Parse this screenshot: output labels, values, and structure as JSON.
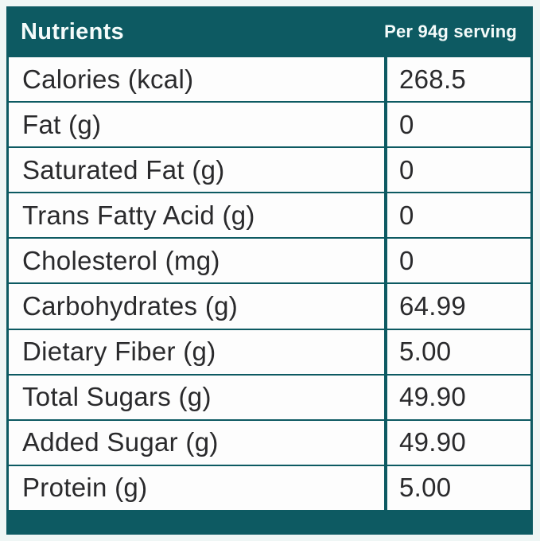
{
  "table": {
    "title": "Nutrients",
    "serving_label": "Per 94g serving",
    "rows": [
      {
        "label": "Calories (kcal)",
        "value": "268.5"
      },
      {
        "label": "Fat (g)",
        "value": "0"
      },
      {
        "label": "Saturated Fat (g)",
        "value": "0"
      },
      {
        "label": "Trans Fatty Acid (g)",
        "value": "0"
      },
      {
        "label": "Cholesterol (mg)",
        "value": "0"
      },
      {
        "label": "Carbohydrates (g)",
        "value": "64.99"
      },
      {
        "label": "Dietary Fiber (g)",
        "value": "5.00"
      },
      {
        "label": "Total Sugars (g)",
        "value": "49.90"
      },
      {
        "label": "Added Sugar (g)",
        "value": "49.90"
      },
      {
        "label": "Protein (g)",
        "value": "5.00"
      }
    ],
    "colors": {
      "teal": "#0d5a62",
      "cell_background": "#fdfdfd",
      "page_background": "#eff6f5",
      "text": "#2a2a2c",
      "header_text": "#f4fbfa"
    }
  }
}
